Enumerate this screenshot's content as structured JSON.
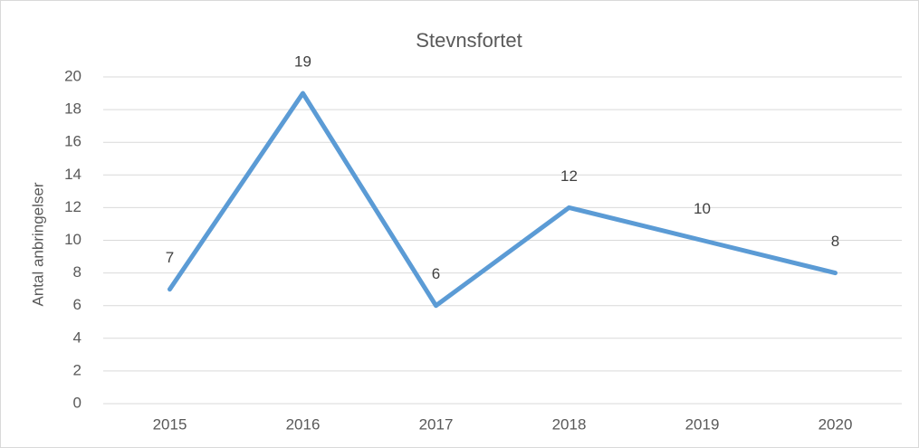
{
  "chart_data": {
    "type": "line",
    "title": "Stevnsfortet",
    "y_label": "Antal anbringelser",
    "categories": [
      "2015",
      "2016",
      "2017",
      "2018",
      "2019",
      "2020"
    ],
    "series": [
      {
        "name": "Antal anbringelser",
        "color": "#5b9bd5",
        "values": [
          7,
          19,
          6,
          12,
          10,
          8
        ]
      }
    ],
    "ylim": [
      0,
      20
    ],
    "yticks": [
      0,
      2,
      4,
      6,
      8,
      10,
      12,
      14,
      16,
      18,
      20
    ],
    "grid": true
  }
}
